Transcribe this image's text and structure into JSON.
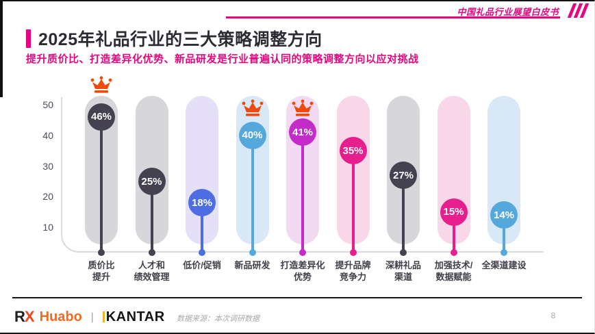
{
  "header": {
    "watermark": "中国礼品行业展望白皮书"
  },
  "title": "2025年礼品行业的三大策略调整方向",
  "subtitle": "提升质价比、打造差异化优势、新品研发是行业普遍认同的策略调整方向以应对挑战",
  "brand": {
    "accent_pink": "#e6057f",
    "crown_orange": "#f0490d"
  },
  "chart_data": {
    "type": "bar",
    "subtype": "lollipop",
    "title": "2025年礼品行业的三大策略调整方向",
    "categories": [
      "质价比提升",
      "人才和绩效管理",
      "低价/促销",
      "新品研发",
      "打造差异化优势",
      "提升品牌竞争力",
      "深耕礼品渠道",
      "加强技术/数据赋能",
      "全渠道建设"
    ],
    "values": [
      46,
      25,
      18,
      40,
      41,
      35,
      27,
      15,
      14
    ],
    "value_labels": [
      "46%",
      "25%",
      "18%",
      "40%",
      "41%",
      "35%",
      "27%",
      "15%",
      "14%"
    ],
    "crowned_categories": [
      "质价比提升",
      "新品研发",
      "打造差异化优势"
    ],
    "yticks": [
      10,
      20,
      30,
      40,
      50
    ],
    "ylim": [
      0,
      52
    ],
    "grid": false,
    "legend": false,
    "xlabel": "",
    "ylabel": "",
    "crown_color": "#f0490d",
    "columns": [
      {
        "label": "质价比提升",
        "label_lines": [
          "质价比",
          "提升"
        ],
        "value": 46,
        "value_label": "46%",
        "accent": "#454150",
        "capsule": "#d7d6db",
        "crown": true,
        "crown_pos": "above"
      },
      {
        "label": "人才和绩效管理",
        "label_lines": [
          "人才和",
          "绩效管理"
        ],
        "value": 25,
        "value_label": "25%",
        "accent": "#454150",
        "capsule": "#d7d6db",
        "crown": false,
        "crown_pos": ""
      },
      {
        "label": "低价/促销",
        "label_lines": [
          "低价/促销"
        ],
        "value": 18,
        "value_label": "18%",
        "accent": "#4d6ee3",
        "capsule": "#e5e0f8",
        "crown": false,
        "crown_pos": ""
      },
      {
        "label": "新品研发",
        "label_lines": [
          "新品研发"
        ],
        "value": 40,
        "value_label": "40%",
        "accent": "#55a8dc",
        "capsule": "#d9e8f6",
        "crown": true,
        "crown_pos": "inside"
      },
      {
        "label": "打造差异化优势",
        "label_lines": [
          "打造差异化",
          "优势"
        ],
        "value": 41,
        "value_label": "41%",
        "accent": "#c32cc8",
        "capsule": "#f3daf3",
        "crown": true,
        "crown_pos": "inside"
      },
      {
        "label": "提升品牌竞争力",
        "label_lines": [
          "提升品牌",
          "竞争力"
        ],
        "value": 35,
        "value_label": "35%",
        "accent": "#e71e8d",
        "capsule": "#f8d8e8",
        "crown": false,
        "crown_pos": ""
      },
      {
        "label": "深耕礼品渠道",
        "label_lines": [
          "深耕礼品",
          "渠道"
        ],
        "value": 27,
        "value_label": "27%",
        "accent": "#454150",
        "capsule": "#d7d6db",
        "crown": false,
        "crown_pos": ""
      },
      {
        "label": "加强技术/数据赋能",
        "label_lines": [
          "加强技术/",
          "数据赋能"
        ],
        "value": 15,
        "value_label": "15%",
        "accent": "#e71e8d",
        "capsule": "#f8d8e8",
        "crown": false,
        "crown_pos": ""
      },
      {
        "label": "全渠道建设",
        "label_lines": [
          "全渠道建设"
        ],
        "value": 14,
        "value_label": "14%",
        "accent": "#55a8dc",
        "capsule": "#d9e8f6",
        "crown": false,
        "crown_pos": ""
      }
    ]
  },
  "footer": {
    "logo": {
      "rx_r": "R",
      "rx_x": "X",
      "huabo": "Huabo",
      "separator": "|",
      "kantar": "KANTAR"
    },
    "source": "数据来源：本次调研数据",
    "page_number": "8"
  }
}
